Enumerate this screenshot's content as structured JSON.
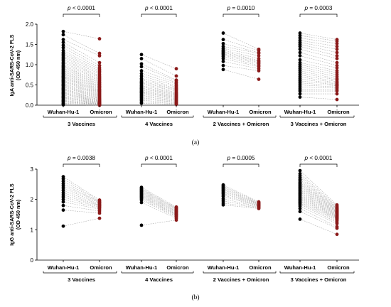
{
  "colors": {
    "wuhan": "#000000",
    "omicron": "#8b1a1a",
    "pair_line": "#a8a8a8"
  },
  "chart_data": [
    {
      "type": "scatter",
      "panel_label": "(a)",
      "ylabel_line1": "IgA anti-SARS-CoV-2 FLS",
      "ylabel_line2": "(OD 450 nm)",
      "ylim": [
        0,
        2.0
      ],
      "yticks": [
        "0.0",
        "0.5",
        "1.0",
        "1.5",
        "2.0"
      ],
      "categories": [
        "Wuhan-Hu-1",
        "Omicron"
      ],
      "groups": [
        {
          "name": "3 Vaccines",
          "p_value": "p < 0.0001",
          "wuhan": [
            1.82,
            1.74,
            1.62,
            1.55,
            1.48,
            1.42,
            1.35,
            1.3,
            1.26,
            1.22,
            1.18,
            1.14,
            1.1,
            1.06,
            1.02,
            0.98,
            0.95,
            0.92,
            0.89,
            0.86,
            0.83,
            0.8,
            0.78,
            0.75,
            0.72,
            0.7,
            0.68,
            0.65,
            0.62,
            0.6,
            0.58,
            0.55,
            0.52,
            0.5,
            0.48,
            0.45,
            0.42,
            0.4,
            0.38,
            0.35,
            0.32,
            0.3,
            0.28,
            0.25,
            0.22,
            0.2,
            0.18,
            0.15,
            0.12,
            0.1,
            0.08,
            0.05,
            0.03,
            0.01
          ],
          "omicron": [
            1.64,
            1.28,
            1.22,
            1.05,
            0.98,
            0.92,
            0.88,
            0.84,
            0.8,
            0.76,
            0.72,
            0.69,
            0.66,
            0.63,
            0.6,
            0.57,
            0.55,
            0.52,
            0.5,
            0.47,
            0.45,
            0.43,
            0.4,
            0.38,
            0.36,
            0.34,
            0.32,
            0.3,
            0.28,
            0.26,
            0.24,
            0.22,
            0.2,
            0.18,
            0.16,
            0.15,
            0.13,
            0.12,
            0.1,
            0.09,
            0.08,
            0.07,
            0.06,
            0.05,
            0.04,
            0.03,
            0.03,
            0.02,
            0.02,
            0.01,
            0.01,
            0.01,
            0.0,
            0.0
          ]
        },
        {
          "name": "4 Vaccines",
          "p_value": "p < 0.0001",
          "wuhan": [
            1.25,
            1.15,
            1.02,
            0.95,
            0.85,
            0.78,
            0.72,
            0.66,
            0.62,
            0.58,
            0.55,
            0.52,
            0.48,
            0.45,
            0.42,
            0.4,
            0.37,
            0.34,
            0.32,
            0.3,
            0.27,
            0.24,
            0.21,
            0.18,
            0.15,
            0.12,
            0.08,
            0.05
          ],
          "omicron": [
            0.9,
            0.72,
            0.62,
            0.6,
            0.56,
            0.52,
            0.48,
            0.45,
            0.42,
            0.4,
            0.38,
            0.35,
            0.32,
            0.3,
            0.28,
            0.26,
            0.24,
            0.22,
            0.2,
            0.18,
            0.16,
            0.14,
            0.12,
            0.1,
            0.08,
            0.06,
            0.04,
            0.02
          ]
        },
        {
          "name": "2 Vaccines + Omicron",
          "p_value": "p = 0.0010",
          "wuhan": [
            1.78,
            1.62,
            1.52,
            1.45,
            1.4,
            1.36,
            1.33,
            1.3,
            1.27,
            1.24,
            1.2,
            1.15,
            1.08,
            0.98,
            0.88
          ],
          "omicron": [
            1.38,
            1.35,
            1.3,
            1.28,
            1.22,
            1.15,
            1.1,
            1.08,
            1.05,
            1.02,
            0.98,
            0.95,
            0.9,
            0.85,
            0.64
          ]
        },
        {
          "name": "3 Vaccines + Omicron",
          "p_value": "p = 0.0003",
          "wuhan": [
            1.78,
            1.72,
            1.66,
            1.6,
            1.55,
            1.5,
            1.45,
            1.38,
            1.3,
            1.22,
            1.12,
            1.05,
            1.0,
            0.95,
            0.9,
            0.85,
            0.8,
            0.75,
            0.7,
            0.65,
            0.6,
            0.55,
            0.5,
            0.45,
            0.4,
            0.35,
            0.28,
            0.2
          ],
          "omicron": [
            1.62,
            1.58,
            1.52,
            1.45,
            1.38,
            1.3,
            1.22,
            1.15,
            1.05,
            0.98,
            0.92,
            0.85,
            0.8,
            0.75,
            0.7,
            0.65,
            0.62,
            0.58,
            0.55,
            0.52,
            0.5,
            0.48,
            0.45,
            0.42,
            0.38,
            0.35,
            0.28,
            0.14
          ]
        }
      ]
    },
    {
      "type": "scatter",
      "panel_label": "(b)",
      "ylabel_line1": "IgG anti-SARS-CoV-2 FLS",
      "ylabel_line2": "(OD 450 nm)",
      "ylim": [
        0,
        3
      ],
      "yticks": [
        "0",
        "1",
        "2",
        "3"
      ],
      "categories": [
        "Wuhan-Hu-1",
        "Omicron"
      ],
      "groups": [
        {
          "name": "3 Vaccines",
          "p_value": "p = 0.0038",
          "wuhan": [
            2.75,
            2.68,
            2.6,
            2.52,
            2.45,
            2.38,
            2.3,
            2.22,
            2.15,
            2.08,
            2.0,
            1.92,
            1.8,
            1.65,
            1.12
          ],
          "omicron": [
            1.98,
            1.95,
            1.92,
            1.9,
            1.88,
            1.85,
            1.82,
            1.8,
            1.78,
            1.75,
            1.72,
            1.68,
            1.62,
            1.55,
            1.38
          ]
        },
        {
          "name": "4 Vaccines",
          "p_value": "p < 0.0001",
          "wuhan": [
            2.4,
            2.36,
            2.33,
            2.3,
            2.27,
            2.24,
            2.21,
            2.18,
            2.15,
            2.12,
            2.09,
            2.06,
            2.02,
            1.98,
            1.9,
            1.15
          ],
          "omicron": [
            1.75,
            1.72,
            1.7,
            1.68,
            1.65,
            1.62,
            1.6,
            1.58,
            1.55,
            1.52,
            1.5,
            1.48,
            1.45,
            1.42,
            1.38,
            1.32
          ]
        },
        {
          "name": "2 Vaccines + Omicron",
          "p_value": "p = 0.0005",
          "wuhan": [
            2.48,
            2.44,
            2.4,
            2.36,
            2.32,
            2.28,
            2.24,
            2.2,
            2.15,
            2.1,
            2.02,
            1.95,
            1.88,
            1.82
          ],
          "omicron": [
            1.92,
            1.9,
            1.88,
            1.86,
            1.85,
            1.84,
            1.82,
            1.8,
            1.79,
            1.78,
            1.76,
            1.74,
            1.72,
            1.7
          ]
        },
        {
          "name": "3 Vaccines + Omicron",
          "p_value": "p < 0.0001",
          "wuhan": [
            2.95,
            2.85,
            2.78,
            2.72,
            2.66,
            2.61,
            2.56,
            2.52,
            2.48,
            2.44,
            2.4,
            2.36,
            2.32,
            2.28,
            2.24,
            2.2,
            2.16,
            2.12,
            2.08,
            2.04,
            2.0,
            1.96,
            1.92,
            1.88,
            1.84,
            1.78,
            1.7,
            1.6,
            1.35
          ],
          "omicron": [
            1.82,
            1.78,
            1.75,
            1.72,
            1.7,
            1.68,
            1.66,
            1.64,
            1.62,
            1.6,
            1.58,
            1.56,
            1.54,
            1.52,
            1.5,
            1.48,
            1.46,
            1.44,
            1.42,
            1.4,
            1.38,
            1.36,
            1.33,
            1.3,
            1.25,
            1.2,
            1.1,
            1.05,
            0.85
          ]
        }
      ]
    }
  ]
}
